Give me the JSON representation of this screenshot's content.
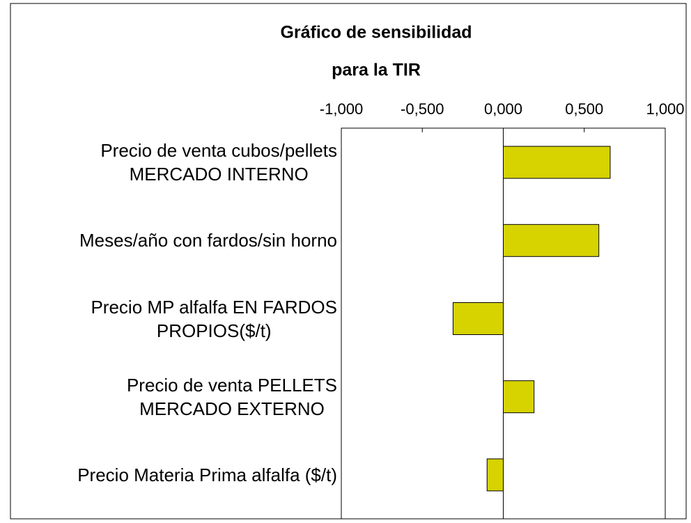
{
  "chart_data": {
    "type": "bar",
    "orientation": "horizontal",
    "title": "Gráfico de sensibilidad",
    "subtitle": "para la TIR",
    "categories": [
      "Precio de venta cubos/pellets\nMERCADO INTERNO",
      "Meses/año con fardos/sin horno",
      "Precio MP alfalfa EN FARDOS\nPROPIOS($/t)",
      "Precio de venta PELLETS\nMERCADO EXTERNO",
      "Precio Materia Prima alfalfa ($/t)"
    ],
    "values": [
      0.66,
      0.59,
      -0.31,
      0.19,
      -0.1
    ],
    "color": "#d6d300",
    "xlim": [
      -1,
      1
    ],
    "xticks": [
      {
        "value": -1,
        "label": "-1,000"
      },
      {
        "value": -0.5,
        "label": "-0,500"
      },
      {
        "value": 0,
        "label": "0,000"
      },
      {
        "value": 0.5,
        "label": "0,500"
      },
      {
        "value": 1,
        "label": "1,000"
      }
    ]
  }
}
